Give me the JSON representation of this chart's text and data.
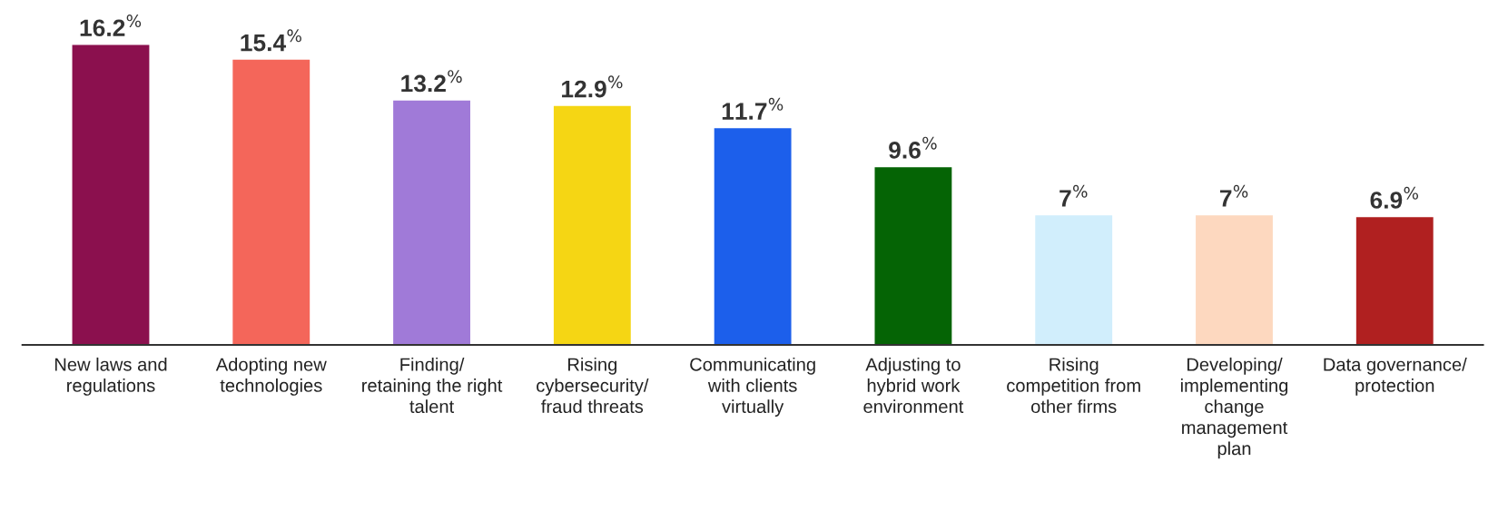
{
  "chart_data": {
    "type": "bar",
    "categories": [
      "New laws and\nregulations",
      "Adopting new\ntechnologies",
      "Finding/\nretaining the right\ntalent",
      "Rising\ncybersecurity/\nfraud threats",
      "Communicating\nwith clients\nvirtually",
      "Adjusting to\nhybrid work\nenvironment",
      "Rising\ncompetition from\nother firms",
      "Developing/\nimplementing\nchange\nmanagement\nplan",
      "Data governance/\nprotection"
    ],
    "values": [
      16.2,
      15.4,
      13.2,
      12.9,
      11.7,
      9.6,
      7,
      7,
      6.9
    ],
    "colors": [
      "#8b104e",
      "#f4665a",
      "#a07ad8",
      "#f5d614",
      "#1c5feb",
      "#056405",
      "#d1eefc",
      "#fdd8bf",
      "#b02020"
    ],
    "value_labels": [
      "16.2$^{%}$",
      "15.4$^{%}$",
      "13.2$^{%}$",
      "12.9$^{%}$",
      "11.7$^{%}$",
      "9.6$^{%}$",
      "7$^{%}$",
      "7$^{%}$",
      "6.9$^{%}$"
    ],
    "grid": false,
    "legend": false
  }
}
